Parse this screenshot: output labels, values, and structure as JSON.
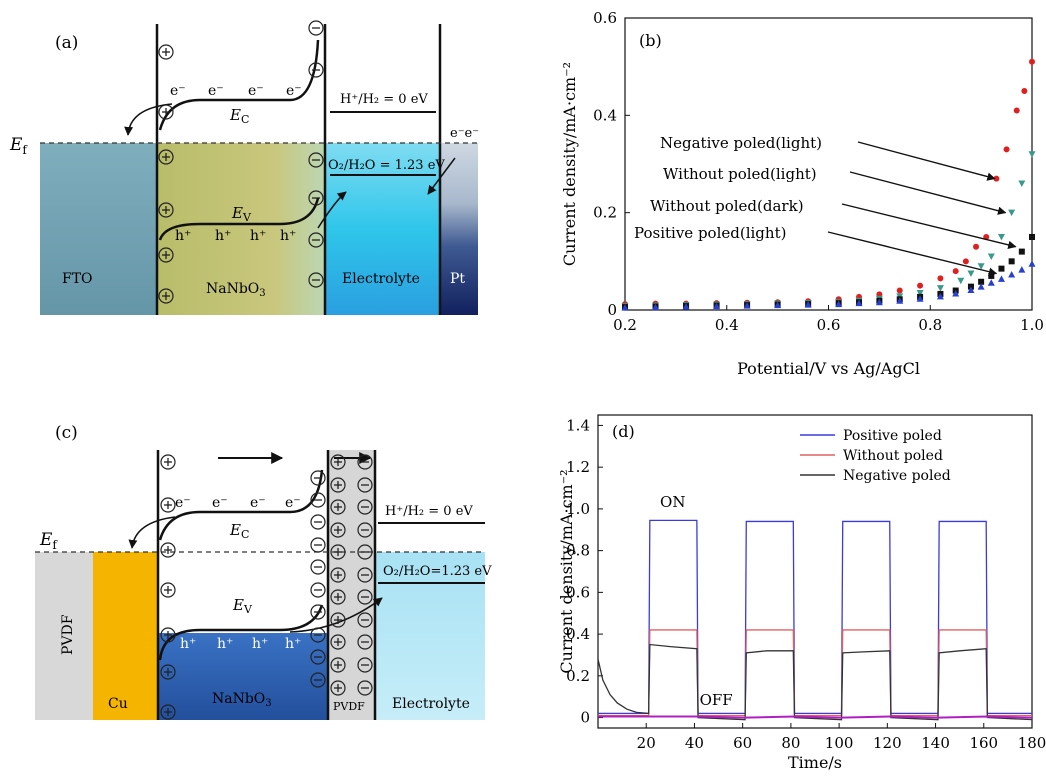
{
  "panel_a": {
    "tag": "(a)",
    "ef": "E",
    "ef_sub": "f",
    "fto": "FTO",
    "nanbo_main": "NaNbO",
    "nanbo_sub": "3",
    "electrolyte": "Electrolyte",
    "pt": "Pt",
    "ec": "E",
    "ec_sub": "C",
    "ev": "E",
    "ev_sub": "V",
    "electron": "e⁻",
    "hole": "h⁺",
    "pt_electrons": "e⁻e⁻",
    "h_level": "H⁺/H₂ = 0 eV",
    "o_level": "O₂/H₂O = 1.23 eV",
    "plus": "+",
    "minus": "−",
    "colors": {
      "fto": "#6fa2b2",
      "nanbo": "#c4c27a",
      "electrolyte": "#2ec4ea",
      "pt": "#1a2a6a"
    }
  },
  "panel_c": {
    "tag": "(c)",
    "ef": "E",
    "ef_sub": "f",
    "pvdf_left": "PVDF",
    "cu": "Cu",
    "nanbo_main": "NaNbO",
    "nanbo_sub": "3",
    "pvdf_mid": "PVDF",
    "electrolyte": "Electrolyte",
    "ec": "E",
    "ec_sub": "C",
    "ev": "E",
    "ev_sub": "V",
    "electron": "e⁻",
    "hole": "h⁺",
    "h_level": "H⁺/H₂ = 0 eV",
    "o_level": "O₂/H₂O=1.23 eV",
    "plus": "+",
    "minus": "−",
    "colors": {
      "pvdf": "#d8d8d8",
      "cu": "#f5b400",
      "nanbo": "#2a5fb0",
      "electrolyte": "#bfeaf6"
    }
  },
  "chart_data": [
    {
      "type": "scatter",
      "panel": "(b)",
      "xlabel": "Potential/V vs Ag/AgCl",
      "ylabel": "Current density/mA·cm⁻²",
      "xlim": [
        0.2,
        1.0
      ],
      "ylim": [
        0,
        0.6
      ],
      "xticks": [
        "0.2",
        "0.4",
        "0.6",
        "0.8",
        "1.0"
      ],
      "yticks": [
        "0",
        "0.2",
        "0.4",
        "0.6"
      ],
      "grid": false,
      "annotations": [
        {
          "text": "Negative poled(light)",
          "target": [
            0.927,
            0.27
          ]
        },
        {
          "text": "Without poled(light)",
          "target": [
            0.948,
            0.2
          ]
        },
        {
          "text": "Without poled(dark)",
          "target": [
            0.968,
            0.13
          ]
        },
        {
          "text": "Positive poled(light)",
          "target": [
            0.93,
            0.075
          ]
        }
      ],
      "series": [
        {
          "color": "#e02020",
          "marker": "circle",
          "x": [
            0.2,
            0.26,
            0.32,
            0.38,
            0.44,
            0.5,
            0.56,
            0.62,
            0.66,
            0.7,
            0.74,
            0.78,
            0.82,
            0.85,
            0.87,
            0.89,
            0.91,
            0.93,
            0.95,
            0.97,
            0.985,
            1.0
          ],
          "y": [
            0.012,
            0.013,
            0.013,
            0.014,
            0.015,
            0.016,
            0.018,
            0.022,
            0.027,
            0.032,
            0.04,
            0.05,
            0.065,
            0.08,
            0.1,
            0.13,
            0.15,
            0.27,
            0.33,
            0.41,
            0.45,
            0.51
          ]
        },
        {
          "color": "#3a9a8a",
          "marker": "triangle-down",
          "x": [
            0.2,
            0.26,
            0.32,
            0.38,
            0.44,
            0.5,
            0.56,
            0.62,
            0.66,
            0.7,
            0.74,
            0.78,
            0.82,
            0.86,
            0.88,
            0.9,
            0.92,
            0.94,
            0.96,
            0.98,
            1.0
          ],
          "y": [
            0.008,
            0.009,
            0.01,
            0.011,
            0.012,
            0.013,
            0.014,
            0.016,
            0.019,
            0.023,
            0.028,
            0.035,
            0.045,
            0.06,
            0.075,
            0.09,
            0.11,
            0.15,
            0.2,
            0.26,
            0.32
          ]
        },
        {
          "color": "#111111",
          "marker": "square",
          "x": [
            0.2,
            0.26,
            0.32,
            0.38,
            0.44,
            0.5,
            0.56,
            0.62,
            0.66,
            0.7,
            0.74,
            0.78,
            0.82,
            0.85,
            0.88,
            0.9,
            0.92,
            0.94,
            0.96,
            0.98,
            1.0
          ],
          "y": [
            0.006,
            0.007,
            0.008,
            0.009,
            0.01,
            0.011,
            0.012,
            0.014,
            0.016,
            0.019,
            0.022,
            0.027,
            0.033,
            0.04,
            0.048,
            0.058,
            0.07,
            0.085,
            0.1,
            0.12,
            0.15
          ]
        },
        {
          "color": "#2840d0",
          "marker": "triangle-up",
          "x": [
            0.2,
            0.26,
            0.32,
            0.38,
            0.44,
            0.5,
            0.56,
            0.62,
            0.66,
            0.7,
            0.74,
            0.78,
            0.82,
            0.85,
            0.88,
            0.9,
            0.92,
            0.94,
            0.96,
            0.98,
            1.0
          ],
          "y": [
            0.005,
            0.006,
            0.007,
            0.008,
            0.009,
            0.01,
            0.011,
            0.012,
            0.014,
            0.016,
            0.019,
            0.023,
            0.028,
            0.034,
            0.041,
            0.048,
            0.056,
            0.064,
            0.073,
            0.083,
            0.095
          ]
        }
      ]
    },
    {
      "type": "line",
      "panel": "(d)",
      "xlabel": "Time/s",
      "ylabel": "Current density/mA·cm⁻²",
      "xlim": [
        0,
        180
      ],
      "ylim": [
        -0.05,
        1.45
      ],
      "xticks": [
        "20",
        "40",
        "60",
        "80",
        "100",
        "120",
        "140",
        "160",
        "180"
      ],
      "yticks": [
        "0",
        "0.2",
        "0.4",
        "0.6",
        "0.8",
        "1.0",
        "1.2",
        "1.4"
      ],
      "legend_position": "top-right",
      "annotations": [
        {
          "text": "ON",
          "at": [
            31,
            1.01
          ]
        },
        {
          "text": "OFF",
          "at": [
            49,
            0.06
          ]
        }
      ],
      "series": [
        {
          "name": "Positive poled",
          "color": "#3a3ae0",
          "x": [
            0,
            21,
            21.5,
            41,
            41.5,
            61,
            61.5,
            81,
            81.5,
            101,
            101.5,
            121,
            121.5,
            141,
            141.5,
            161,
            161.5,
            180
          ],
          "y": [
            0.02,
            0.02,
            0.945,
            0.945,
            0.02,
            0.02,
            0.94,
            0.94,
            0.02,
            0.02,
            0.94,
            0.94,
            0.02,
            0.02,
            0.94,
            0.94,
            0.02,
            0.02
          ]
        },
        {
          "name": "Without poled",
          "color": "#e06060",
          "x": [
            0,
            21,
            21.5,
            41,
            41.5,
            61,
            61.5,
            81,
            81.5,
            101,
            101.5,
            121,
            121.5,
            141,
            141.5,
            161,
            161.5,
            180
          ],
          "y": [
            0.01,
            0.01,
            0.42,
            0.42,
            0.01,
            0.01,
            0.42,
            0.42,
            0.01,
            0.01,
            0.42,
            0.42,
            0.01,
            0.01,
            0.42,
            0.42,
            0.01,
            0.01
          ]
        },
        {
          "name": "Negative poled",
          "color": "#333333",
          "x": [
            0,
            2,
            5,
            8,
            12,
            16,
            21,
            21.5,
            30,
            41,
            41.5,
            61,
            61.5,
            70,
            81,
            81.5,
            101,
            101.5,
            110,
            121,
            121.5,
            141,
            141.5,
            150,
            161,
            161.5,
            180
          ],
          "y": [
            0.28,
            0.18,
            0.11,
            0.07,
            0.04,
            0.025,
            0.02,
            0.35,
            0.34,
            0.33,
            0.0,
            -0.01,
            0.31,
            0.32,
            0.32,
            0.0,
            -0.01,
            0.31,
            0.315,
            0.32,
            0.0,
            -0.01,
            0.31,
            0.32,
            0.33,
            0.0,
            -0.01
          ]
        },
        {
          "name": "",
          "color": "#b020c0",
          "x": [
            0,
            21,
            41.5,
            61,
            81.5,
            101,
            121.5,
            141,
            161.5,
            180
          ],
          "y": [
            0.005,
            0.005,
            0.005,
            0.0,
            0.005,
            0.0,
            0.005,
            0.0,
            0.005,
            0.0
          ]
        }
      ]
    }
  ]
}
